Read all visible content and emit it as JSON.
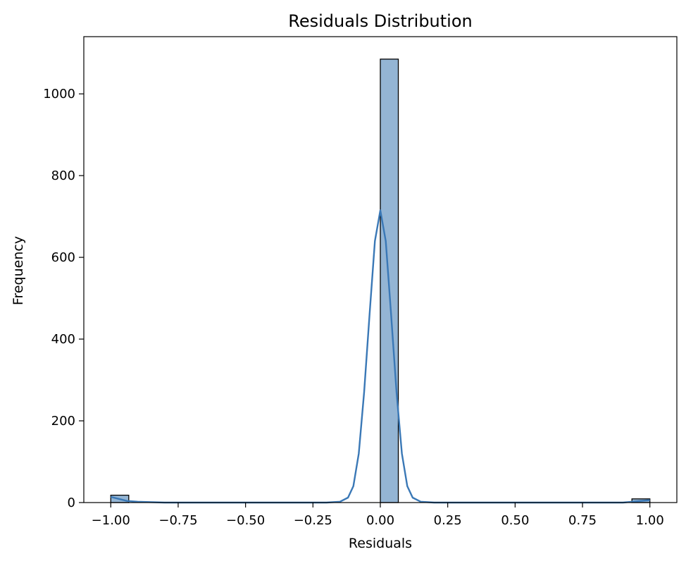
{
  "chart_data": {
    "type": "bar",
    "title": "Residuals Distribution",
    "xlabel": "Residuals",
    "ylabel": "Frequency",
    "xlim": [
      -1.1,
      1.1
    ],
    "ylim": [
      0,
      1140
    ],
    "xticks": [
      -1.0,
      -0.75,
      -0.5,
      -0.25,
      0.0,
      0.25,
      0.5,
      0.75,
      1.0
    ],
    "xtick_labels": [
      "−1.00",
      "−0.75",
      "−0.50",
      "−0.25",
      "0.00",
      "0.25",
      "0.50",
      "0.75",
      "1.00"
    ],
    "yticks": [
      0,
      200,
      400,
      600,
      800,
      1000
    ],
    "ytick_labels": [
      "0",
      "200",
      "400",
      "600",
      "800",
      "1000"
    ],
    "bins": [
      {
        "x0": -1.0,
        "x1": -0.9333,
        "count": 18
      },
      {
        "x0": 0.0,
        "x1": 0.0667,
        "count": 1085
      },
      {
        "x0": 0.9333,
        "x1": 1.0,
        "count": 9
      }
    ],
    "kde": {
      "x": [
        -1.0,
        -0.97,
        -0.94,
        -0.9,
        -0.8,
        -0.2,
        -0.15,
        -0.12,
        -0.1,
        -0.08,
        -0.06,
        -0.04,
        -0.02,
        0.0,
        0.02,
        0.04,
        0.06,
        0.08,
        0.1,
        0.12,
        0.15,
        0.2,
        0.9,
        0.95,
        1.0
      ],
      "y": [
        14,
        9,
        4,
        2,
        0,
        0,
        2,
        12,
        40,
        120,
        270,
        460,
        640,
        715,
        640,
        460,
        270,
        120,
        40,
        12,
        2,
        0,
        0,
        3,
        6
      ]
    },
    "grid": false,
    "colors": {
      "bar_fill": "#94b5d4",
      "bar_edge": "#000000",
      "kde_line": "#3a78b6"
    }
  }
}
